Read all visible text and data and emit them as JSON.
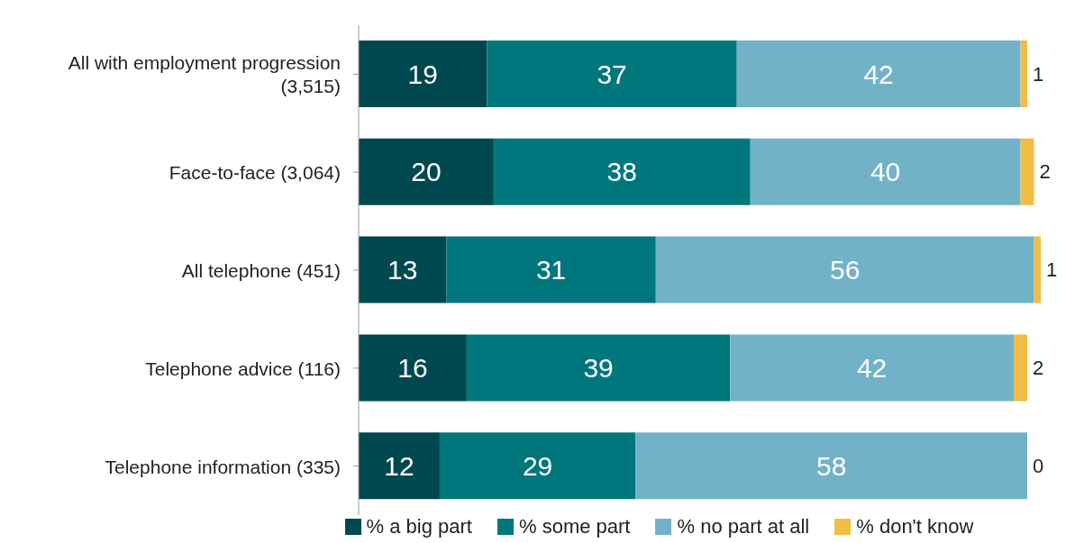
{
  "chart_data": {
    "type": "bar",
    "orientation": "horizontal",
    "stacked": true,
    "data_labels": true,
    "legend": "bottom",
    "grid": false,
    "categories": [
      "All with employment progression (3,515)",
      "Face-to-face (3,064)",
      "All telephone (451)",
      "Telephone advice (116)",
      "Telephone information (335)"
    ],
    "series": [
      {
        "name": "% a big part",
        "color": "#00484f",
        "values": [
          19,
          20,
          13,
          16,
          12
        ]
      },
      {
        "name": "% some part",
        "color": "#00777d",
        "values": [
          37,
          38,
          31,
          39,
          29
        ]
      },
      {
        "name": "% no part at all",
        "color": "#72b2c9",
        "values": [
          42,
          40,
          56,
          42,
          58
        ]
      },
      {
        "name": "% don't know",
        "color": "#f0bd45",
        "values": [
          1,
          2,
          1,
          2,
          0
        ]
      }
    ]
  }
}
